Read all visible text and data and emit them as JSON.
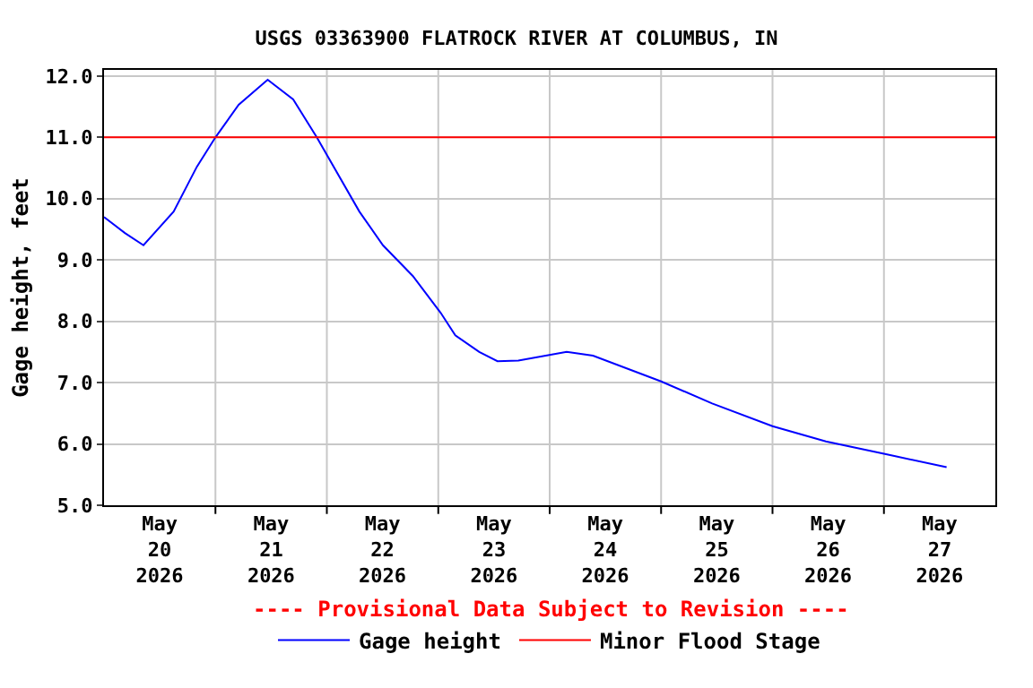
{
  "chart_data": {
    "type": "line",
    "title": "USGS 03363900 FLATROCK RIVER AT COLUMBUS, IN",
    "ylabel": "Gage height, feet",
    "annotations": [
      "---- Provisional Data Subject to Revision ----"
    ],
    "x": [
      "2026-05-20T00:00",
      "2026-05-20T04:30",
      "2026-05-20T08:30",
      "2026-05-20T15:00",
      "2026-05-20T20:00",
      "2026-05-21T00:00",
      "2026-05-21T05:00",
      "2026-05-21T11:15",
      "2026-05-21T16:45",
      "2026-05-21T21:50",
      "2026-05-22T07:00",
      "2026-05-22T12:05",
      "2026-05-22T18:30",
      "2026-05-23T00:30",
      "2026-05-23T03:40",
      "2026-05-23T08:50",
      "2026-05-23T12:45",
      "2026-05-23T17:15",
      "2026-05-24T03:40",
      "2026-05-24T09:20",
      "2026-05-25T00:00",
      "2026-05-25T11:00",
      "2026-05-26T00:00",
      "2026-05-26T11:30",
      "2026-05-27T00:00",
      "2026-05-27T13:30"
    ],
    "series": [
      {
        "name": "Gage height",
        "color": "#0000ff",
        "values": [
          9.7,
          9.44,
          9.24,
          9.79,
          10.52,
          11.0,
          11.53,
          11.94,
          11.62,
          11.0,
          9.79,
          9.24,
          8.74,
          8.14,
          7.77,
          7.5,
          7.35,
          7.36,
          7.5,
          7.44,
          7.02,
          6.66,
          6.29,
          6.04,
          5.84,
          5.62
        ]
      }
    ],
    "ref_lines": [
      {
        "axis": "y",
        "value": 11.0,
        "label": "Minor Flood Stage",
        "color": "#ff0000"
      }
    ],
    "xlim": [
      "2026-05-20T00:00",
      "2026-05-28T00:00"
    ],
    "xticks": [
      {
        "value": "2026-05-20T12:00",
        "label": "May\n20\n2026"
      },
      {
        "value": "2026-05-21T12:00",
        "label": "May\n21\n2026"
      },
      {
        "value": "2026-05-22T12:00",
        "label": "May\n22\n2026"
      },
      {
        "value": "2026-05-23T12:00",
        "label": "May\n23\n2026"
      },
      {
        "value": "2026-05-24T12:00",
        "label": "May\n24\n2026"
      },
      {
        "value": "2026-05-25T12:00",
        "label": "May\n25\n2026"
      },
      {
        "value": "2026-05-26T12:00",
        "label": "May\n26\n2026"
      },
      {
        "value": "2026-05-27T12:00",
        "label": "May\n27\n2026"
      },
      {
        "value": "2026-05-21T00:00",
        "label": null
      },
      {
        "value": "2026-05-22T00:00",
        "label": null
      },
      {
        "value": "2026-05-23T00:00",
        "label": null
      },
      {
        "value": "2026-05-24T00:00",
        "label": null
      },
      {
        "value": "2026-05-25T00:00",
        "label": null
      },
      {
        "value": "2026-05-26T00:00",
        "label": null
      },
      {
        "value": "2026-05-27T00:00",
        "label": null
      }
    ],
    "ylim": [
      5.0,
      12.1
    ],
    "yticks": [
      {
        "value": 5,
        "label": "5.0"
      },
      {
        "value": 6,
        "label": "6.0"
      },
      {
        "value": 7,
        "label": "7.0"
      },
      {
        "value": 8,
        "label": "8.0"
      },
      {
        "value": 9,
        "label": "9.0"
      },
      {
        "value": 10,
        "label": "10.0"
      },
      {
        "value": 11,
        "label": "11.0"
      },
      {
        "value": 12,
        "label": "12.0"
      }
    ],
    "grid": true,
    "legend": "bottom",
    "marker": "none",
    "line_style": "solid"
  }
}
